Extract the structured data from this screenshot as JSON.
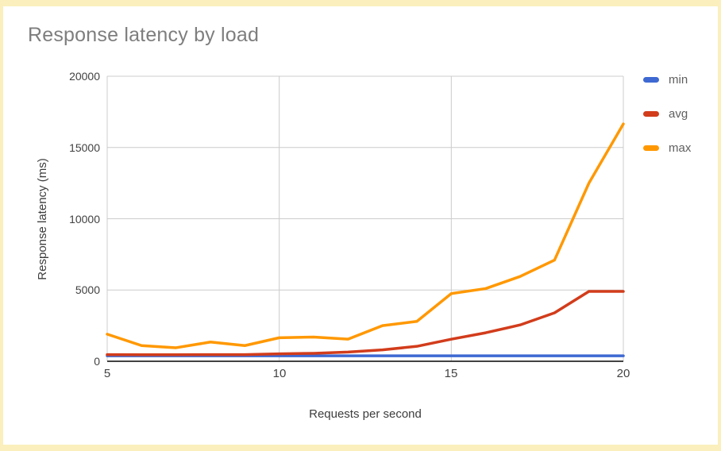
{
  "frame": {
    "border_color": "#faefbd",
    "background": "#ffffff"
  },
  "chart_data": {
    "type": "line",
    "title": "Response latency by load",
    "xlabel": "Requests per second",
    "ylabel": "Response latency (ms)",
    "x": [
      5,
      6,
      7,
      8,
      9,
      10,
      11,
      12,
      13,
      14,
      15,
      16,
      17,
      18,
      19,
      20
    ],
    "series": [
      {
        "name": "min",
        "color": "#3e69d2",
        "values": [
          380,
          380,
          380,
          380,
          380,
          380,
          380,
          380,
          380,
          380,
          380,
          380,
          380,
          380,
          380,
          380
        ]
      },
      {
        "name": "avg",
        "color": "#d23c1b",
        "values": [
          470,
          460,
          460,
          465,
          470,
          520,
          560,
          650,
          800,
          1050,
          1550,
          2000,
          2550,
          3400,
          4900,
          4900
        ]
      },
      {
        "name": "max",
        "color": "#ff9800",
        "values": [
          1900,
          1100,
          950,
          1350,
          1100,
          1650,
          1700,
          1550,
          2500,
          2800,
          4750,
          5100,
          5950,
          7100,
          12500,
          16650
        ]
      }
    ],
    "xlim": [
      5,
      20
    ],
    "ylim": [
      0,
      20000
    ],
    "xticks": [
      5,
      10,
      15,
      20
    ],
    "xtick_labels": [
      "5",
      "10",
      "15",
      "20"
    ],
    "yticks": [
      0,
      5000,
      10000,
      15000,
      20000
    ],
    "ytick_labels": [
      "0",
      "5000",
      "10000",
      "15000",
      "20000"
    ],
    "grid": true,
    "legend_position": "right",
    "gridline_color": "#cccccc",
    "baseline_color": "#424242",
    "title_color": "#7e7e7e"
  }
}
